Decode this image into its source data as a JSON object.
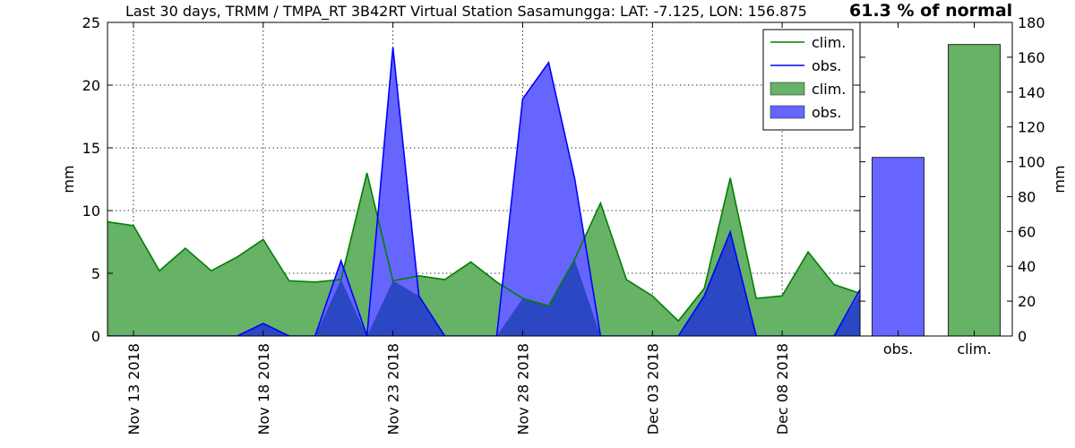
{
  "title": "Last 30 days, TRMM / TMPA_RT 3B42RT Virtual Station Sasamungga: LAT: -7.125, LON: 156.875",
  "percent_label": "61.3 % of normal",
  "colors": {
    "clim_fill": "#66b266",
    "clim_line": "#007f00",
    "obs_fill": "#6666ff",
    "obs_line": "#0000ff",
    "overlap": "#2b47c4"
  },
  "chart_data": [
    {
      "type": "area",
      "ylabel": "mm",
      "ylim": [
        0,
        25
      ],
      "yticks": [
        0,
        5,
        10,
        15,
        20,
        25
      ],
      "grid": true,
      "legend_position": "top-right",
      "x_start": "Nov 12 2018",
      "x_dates": [
        "Nov 12 2018",
        "Nov 13 2018",
        "Nov 14 2018",
        "Nov 15 2018",
        "Nov 16 2018",
        "Nov 17 2018",
        "Nov 18 2018",
        "Nov 19 2018",
        "Nov 20 2018",
        "Nov 21 2018",
        "Nov 22 2018",
        "Nov 23 2018",
        "Nov 24 2018",
        "Nov 25 2018",
        "Nov 26 2018",
        "Nov 27 2018",
        "Nov 28 2018",
        "Nov 29 2018",
        "Nov 30 2018",
        "Dec 01 2018",
        "Dec 02 2018",
        "Dec 03 2018",
        "Dec 04 2018",
        "Dec 05 2018",
        "Dec 06 2018",
        "Dec 07 2018",
        "Dec 08 2018",
        "Dec 09 2018",
        "Dec 10 2018",
        "Dec 11 2018"
      ],
      "xtick_labels": [
        "Nov 13 2018",
        "Nov 18 2018",
        "Nov 23 2018",
        "Nov 28 2018",
        "Dec 03 2018",
        "Dec 08 2018"
      ],
      "series": [
        {
          "name": "clim.",
          "values": [
            9.1,
            8.8,
            5.2,
            7.0,
            5.2,
            6.3,
            7.7,
            4.4,
            4.3,
            4.5,
            13.0,
            4.4,
            4.8,
            4.5,
            5.9,
            4.3,
            3.0,
            2.4,
            6.1,
            10.6,
            4.5,
            3.2,
            1.2,
            3.8,
            12.6,
            3.0,
            3.2,
            6.7,
            4.1,
            3.4
          ]
        },
        {
          "name": "obs.",
          "values": [
            0,
            0,
            0,
            0,
            0,
            0,
            1.0,
            0,
            0,
            6.0,
            0,
            23.0,
            3.2,
            0,
            0,
            0,
            18.9,
            21.8,
            12.6,
            0,
            0,
            0,
            0,
            3.2,
            8.3,
            0,
            0,
            0,
            0,
            3.7
          ]
        }
      ],
      "legend": [
        {
          "label": "clim.",
          "kind": "line",
          "color": "#007f00"
        },
        {
          "label": "obs.",
          "kind": "line",
          "color": "#0000ff"
        },
        {
          "label": "clim.",
          "kind": "patch",
          "color": "#66b266"
        },
        {
          "label": "obs.",
          "kind": "patch",
          "color": "#6666ff"
        }
      ]
    },
    {
      "type": "bar",
      "ylabel": "mm",
      "ylim": [
        0,
        180
      ],
      "yticks": [
        0,
        20,
        40,
        60,
        80,
        100,
        120,
        140,
        160,
        180
      ],
      "categories": [
        "obs.",
        "clim."
      ],
      "values": [
        102.5,
        167.3
      ],
      "colors": [
        "#6666ff",
        "#66b266"
      ]
    }
  ]
}
